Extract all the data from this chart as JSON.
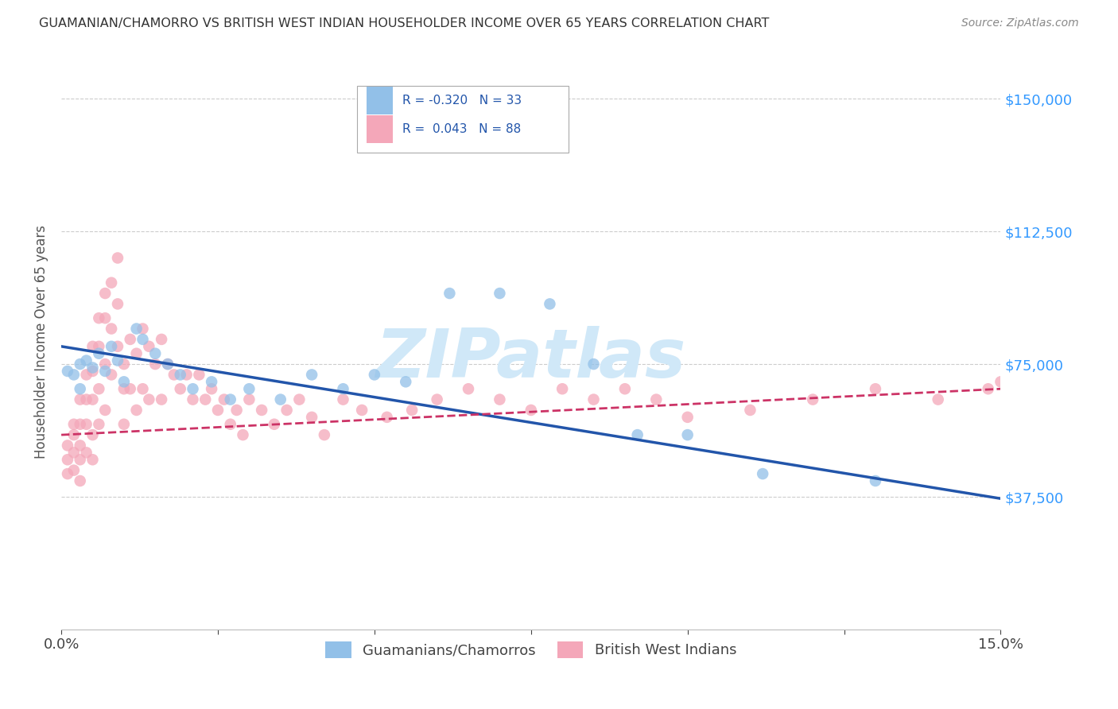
{
  "title": "GUAMANIAN/CHAMORRO VS BRITISH WEST INDIAN HOUSEHOLDER INCOME OVER 65 YEARS CORRELATION CHART",
  "source": "Source: ZipAtlas.com",
  "ylabel": "Householder Income Over 65 years",
  "ytick_labels": [
    "$37,500",
    "$75,000",
    "$112,500",
    "$150,000"
  ],
  "ytick_values": [
    37500,
    75000,
    112500,
    150000
  ],
  "xlim": [
    0.0,
    0.15
  ],
  "ylim": [
    0,
    162500
  ],
  "legend1_r": "-0.320",
  "legend1_n": "33",
  "legend2_r": "0.043",
  "legend2_n": "88",
  "legend1_label": "Guamanians/Chamorros",
  "legend2_label": "British West Indians",
  "blue_color": "#92c0e8",
  "pink_color": "#f4a7b9",
  "blue_line_color": "#2255aa",
  "pink_line_color": "#cc3366",
  "watermark": "ZIPatlas",
  "watermark_color": "#d0e8f8",
  "blue_line_x0": 0.0,
  "blue_line_y0": 80000,
  "blue_line_x1": 0.15,
  "blue_line_y1": 37000,
  "pink_line_x0": 0.0,
  "pink_line_y0": 55000,
  "pink_line_x1": 0.15,
  "pink_line_y1": 68000,
  "blue_scatter_x": [
    0.001,
    0.002,
    0.003,
    0.003,
    0.004,
    0.005,
    0.006,
    0.007,
    0.008,
    0.009,
    0.01,
    0.012,
    0.013,
    0.015,
    0.017,
    0.019,
    0.021,
    0.024,
    0.027,
    0.03,
    0.035,
    0.04,
    0.045,
    0.05,
    0.055,
    0.062,
    0.07,
    0.078,
    0.085,
    0.092,
    0.1,
    0.112,
    0.13
  ],
  "blue_scatter_y": [
    73000,
    72000,
    75000,
    68000,
    76000,
    74000,
    78000,
    73000,
    80000,
    76000,
    70000,
    85000,
    82000,
    78000,
    75000,
    72000,
    68000,
    70000,
    65000,
    68000,
    65000,
    72000,
    68000,
    72000,
    70000,
    95000,
    95000,
    92000,
    75000,
    55000,
    55000,
    44000,
    42000
  ],
  "pink_scatter_x": [
    0.001,
    0.001,
    0.001,
    0.002,
    0.002,
    0.002,
    0.002,
    0.003,
    0.003,
    0.003,
    0.003,
    0.003,
    0.004,
    0.004,
    0.004,
    0.004,
    0.005,
    0.005,
    0.005,
    0.005,
    0.005,
    0.006,
    0.006,
    0.006,
    0.006,
    0.007,
    0.007,
    0.007,
    0.007,
    0.008,
    0.008,
    0.008,
    0.009,
    0.009,
    0.009,
    0.01,
    0.01,
    0.01,
    0.011,
    0.011,
    0.012,
    0.012,
    0.013,
    0.013,
    0.014,
    0.014,
    0.015,
    0.016,
    0.016,
    0.017,
    0.018,
    0.019,
    0.02,
    0.021,
    0.022,
    0.023,
    0.024,
    0.025,
    0.026,
    0.027,
    0.028,
    0.029,
    0.03,
    0.032,
    0.034,
    0.036,
    0.038,
    0.04,
    0.042,
    0.045,
    0.048,
    0.052,
    0.056,
    0.06,
    0.065,
    0.07,
    0.075,
    0.08,
    0.085,
    0.09,
    0.095,
    0.1,
    0.11,
    0.12,
    0.13,
    0.14,
    0.148,
    0.15
  ],
  "pink_scatter_y": [
    52000,
    48000,
    44000,
    58000,
    55000,
    50000,
    45000,
    65000,
    58000,
    52000,
    48000,
    42000,
    72000,
    65000,
    58000,
    50000,
    80000,
    73000,
    65000,
    55000,
    48000,
    88000,
    80000,
    68000,
    58000,
    95000,
    88000,
    75000,
    62000,
    98000,
    85000,
    72000,
    105000,
    92000,
    80000,
    75000,
    68000,
    58000,
    82000,
    68000,
    78000,
    62000,
    85000,
    68000,
    80000,
    65000,
    75000,
    82000,
    65000,
    75000,
    72000,
    68000,
    72000,
    65000,
    72000,
    65000,
    68000,
    62000,
    65000,
    58000,
    62000,
    55000,
    65000,
    62000,
    58000,
    62000,
    65000,
    60000,
    55000,
    65000,
    62000,
    60000,
    62000,
    65000,
    68000,
    65000,
    62000,
    68000,
    65000,
    68000,
    65000,
    60000,
    62000,
    65000,
    68000,
    65000,
    68000,
    70000
  ]
}
